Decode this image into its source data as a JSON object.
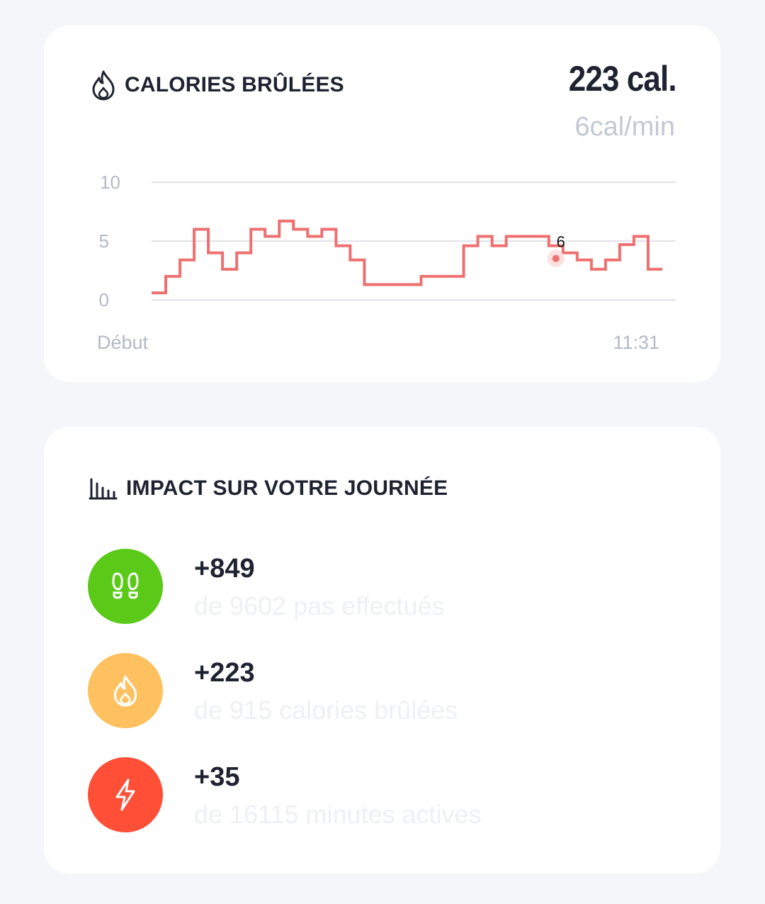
{
  "calories_card": {
    "title": "CALORIES BRÛLÉES",
    "icon": "flame-icon",
    "total": "223 cal.",
    "rate": "6cal/min"
  },
  "chart_data": {
    "type": "line",
    "y_ticks": [
      "10",
      "5",
      "0"
    ],
    "ylim": [
      0,
      10
    ],
    "x_start_label": "Début",
    "x_end_label": "11:31",
    "line_color": "#ee7070",
    "annotation": "6",
    "step_values": [
      0.6,
      2.0,
      3.4,
      6.0,
      4.0,
      2.6,
      4.0,
      6.0,
      5.4,
      6.7,
      6.0,
      5.4,
      6.0,
      4.6,
      3.4,
      1.3,
      1.3,
      1.3,
      1.3,
      2.0,
      2.0,
      2.0,
      4.6,
      5.4,
      4.6,
      5.4,
      5.4,
      5.4,
      4.6,
      4.0,
      3.4,
      2.6,
      3.4,
      4.7,
      5.4,
      2.6
    ],
    "highlight_index": 28
  },
  "impact_card": {
    "title": "IMPACT SUR VOTRE JOURNÉE",
    "icon": "bar-chart-icon",
    "items": [
      {
        "value": "+849",
        "description": "de 9602 pas effectués",
        "icon": "footprints-icon",
        "color": "#5ac918"
      },
      {
        "value": "+223",
        "description": "de 915 calories brûlées",
        "icon": "flame-icon",
        "color": "#ffc15f"
      },
      {
        "value": "+35",
        "description": "de 16115 minutes actives",
        "icon": "lightning-icon",
        "color": "#ff4f37"
      }
    ]
  }
}
